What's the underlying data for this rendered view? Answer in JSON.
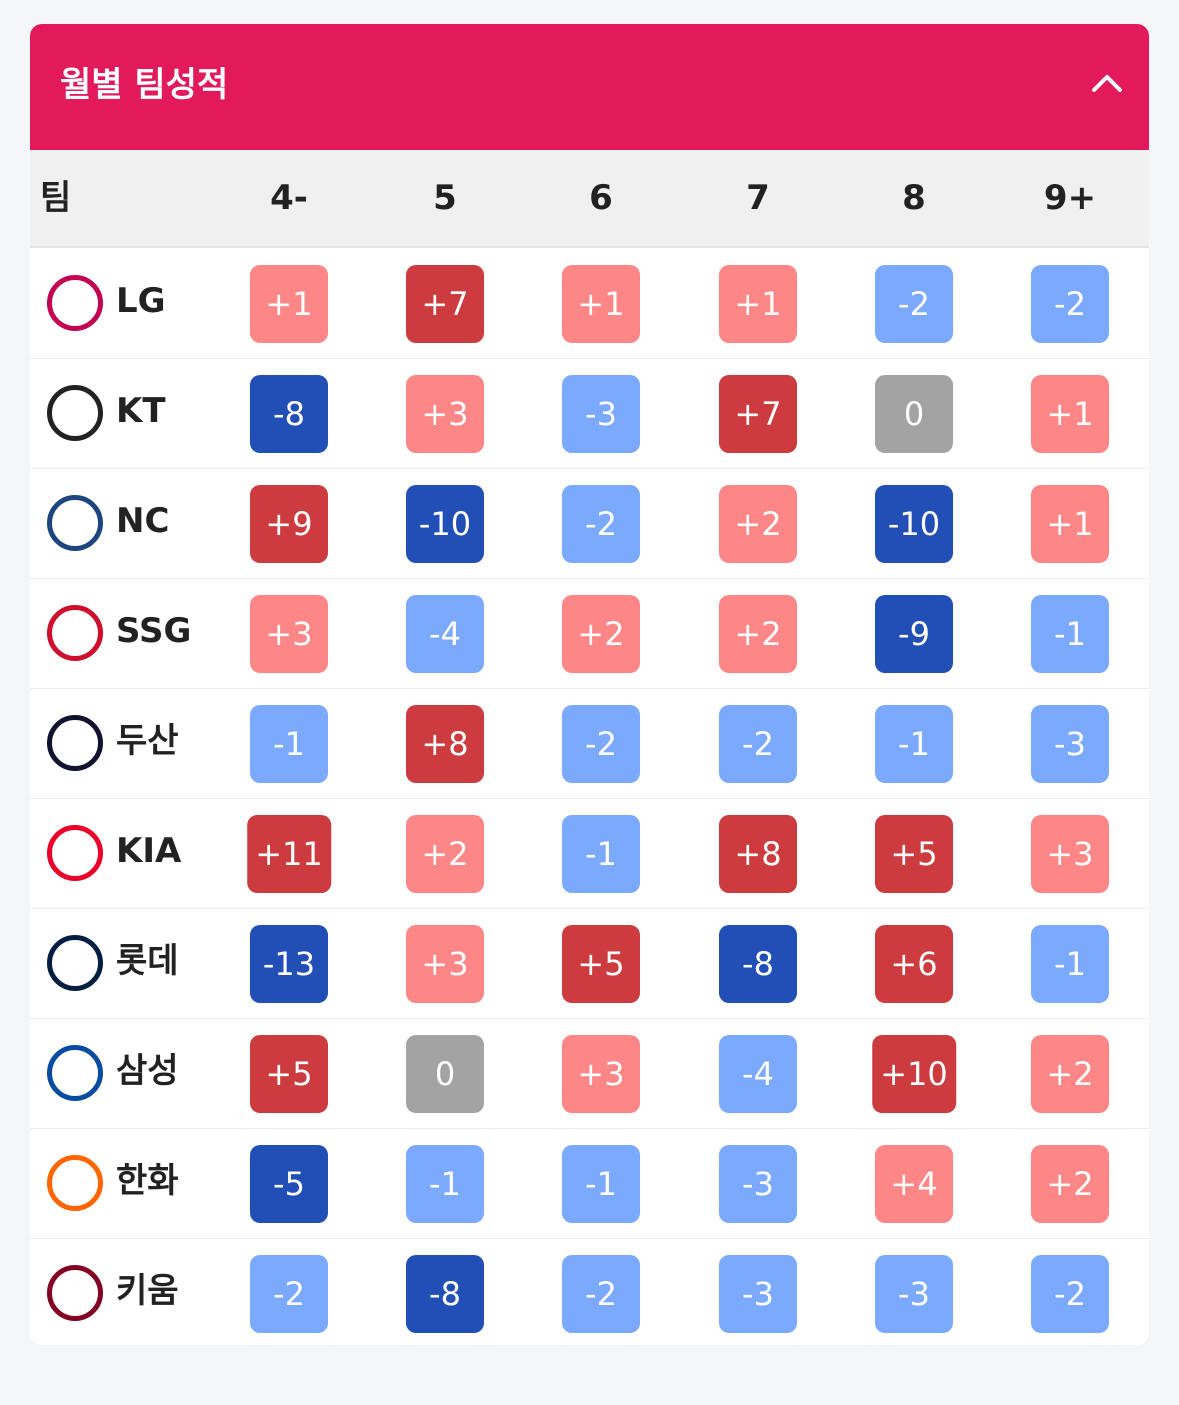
{
  "header": {
    "title": "월별 팀성적"
  },
  "table": {
    "columns": [
      "팀",
      "4-",
      "5",
      "6",
      "7",
      "8",
      "9+"
    ],
    "rows": [
      {
        "team": "LG",
        "logo_color": "#c30452",
        "cells": [
          "+1",
          "+7",
          "+1",
          "+1",
          "-2",
          "-2"
        ]
      },
      {
        "team": "KT",
        "logo_color": "#222222",
        "cells": [
          "-8",
          "+3",
          "-3",
          "+7",
          "0",
          "+1"
        ]
      },
      {
        "team": "NC",
        "logo_color": "#1d467f",
        "cells": [
          "+9",
          "-10",
          "-2",
          "+2",
          "-10",
          "+1"
        ]
      },
      {
        "team": "SSG",
        "logo_color": "#ce0e2d",
        "cells": [
          "+3",
          "-4",
          "+2",
          "+2",
          "-9",
          "-1"
        ]
      },
      {
        "team": "두산",
        "logo_color": "#131230",
        "cells": [
          "-1",
          "+8",
          "-2",
          "-2",
          "-1",
          "-3"
        ]
      },
      {
        "team": "KIA",
        "logo_color": "#ea0029",
        "cells": [
          "+11",
          "+2",
          "-1",
          "+8",
          "+5",
          "+3"
        ]
      },
      {
        "team": "롯데",
        "logo_color": "#041e42",
        "cells": [
          "-13",
          "+3",
          "+5",
          "-8",
          "+6",
          "-1"
        ]
      },
      {
        "team": "삼성",
        "logo_color": "#074ca1",
        "cells": [
          "+5",
          "0",
          "+3",
          "-4",
          "+10",
          "+2"
        ]
      },
      {
        "team": "한화",
        "logo_color": "#ff6600",
        "cells": [
          "-5",
          "-1",
          "-1",
          "-3",
          "+4",
          "+2"
        ]
      },
      {
        "team": "키움",
        "logo_color": "#820024",
        "cells": [
          "-2",
          "-8",
          "-2",
          "-3",
          "-3",
          "-2"
        ]
      }
    ]
  }
}
